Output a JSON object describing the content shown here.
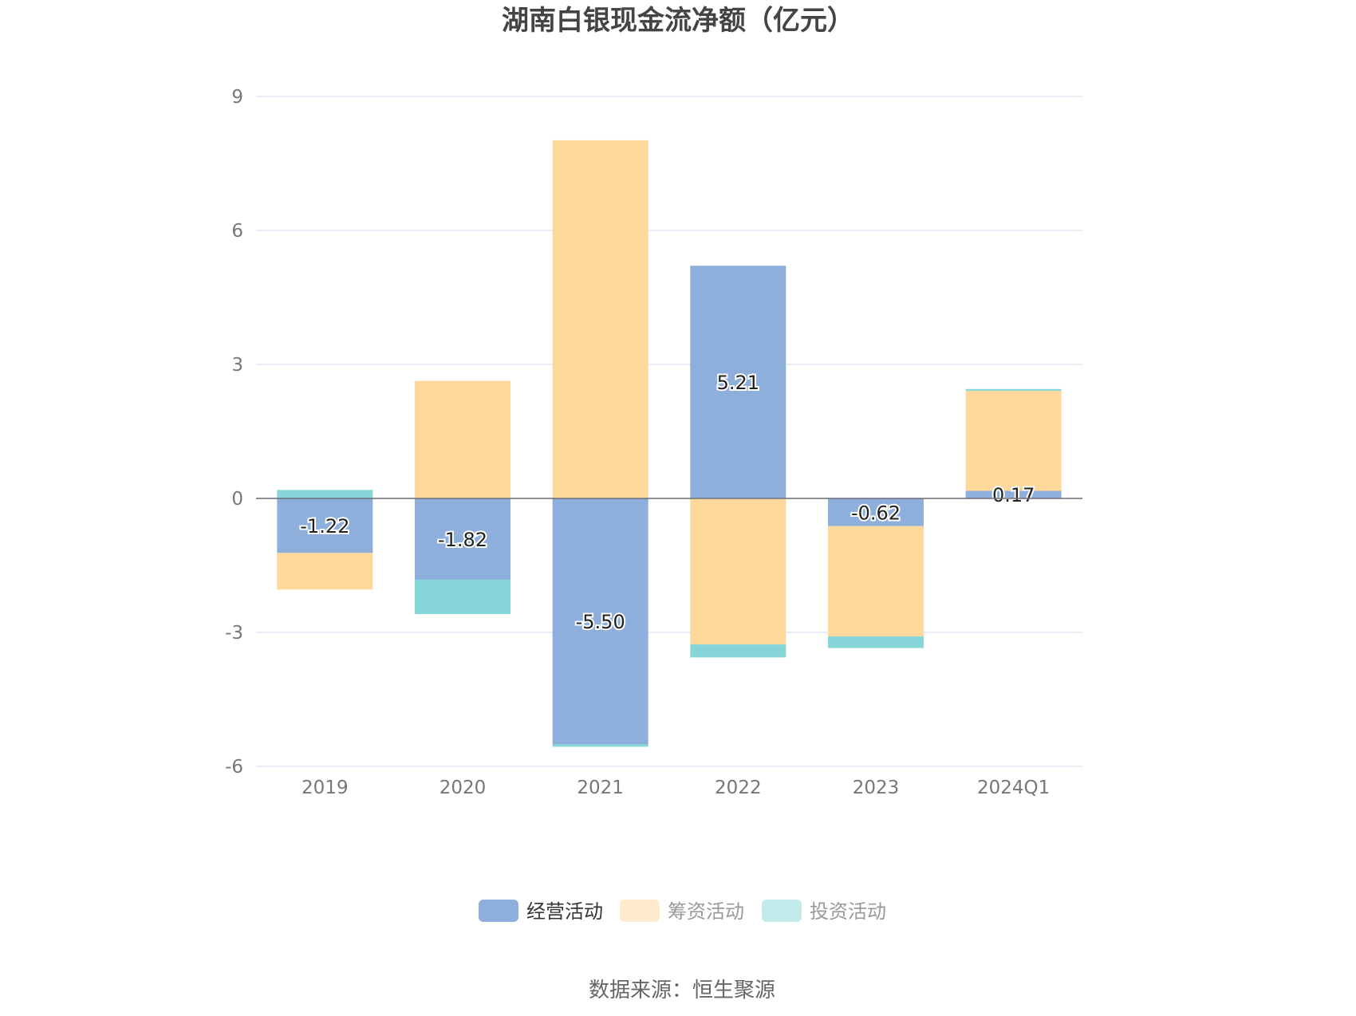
{
  "chart_data": {
    "type": "bar",
    "stacked": true,
    "title": "湖南白银现金流净额（亿元）",
    "categories": [
      "2019",
      "2020",
      "2021",
      "2022",
      "2023",
      "2024Q1"
    ],
    "ylim": [
      -6,
      9
    ],
    "yticks": [
      9,
      6,
      3,
      0,
      -3,
      -6
    ],
    "grid": true,
    "legend_position": "bottom",
    "series": [
      {
        "name": "经营活动",
        "color": "#8eaedb",
        "legend_color": "#8eaedb",
        "legend_text_color": "#333333",
        "values": [
          -1.22,
          -1.82,
          -5.5,
          5.21,
          -0.62,
          0.17
        ],
        "labels": [
          "-1.22",
          "-1.82",
          "-5.50",
          "5.21",
          "-0.62",
          "0.17"
        ]
      },
      {
        "name": "筹资活动",
        "color": "#fed89b",
        "legend_color": "#feebcd",
        "legend_text_color": "#999999",
        "values": [
          -0.82,
          2.63,
          8.02,
          -3.27,
          -2.47,
          2.24
        ]
      },
      {
        "name": "投资活动",
        "color": "#86d5d8",
        "legend_color": "#c2eaeb",
        "legend_text_color": "#999999",
        "values": [
          0.19,
          -0.77,
          -0.06,
          -0.29,
          -0.26,
          0.04
        ]
      }
    ]
  },
  "source": "数据来源：恒生聚源"
}
